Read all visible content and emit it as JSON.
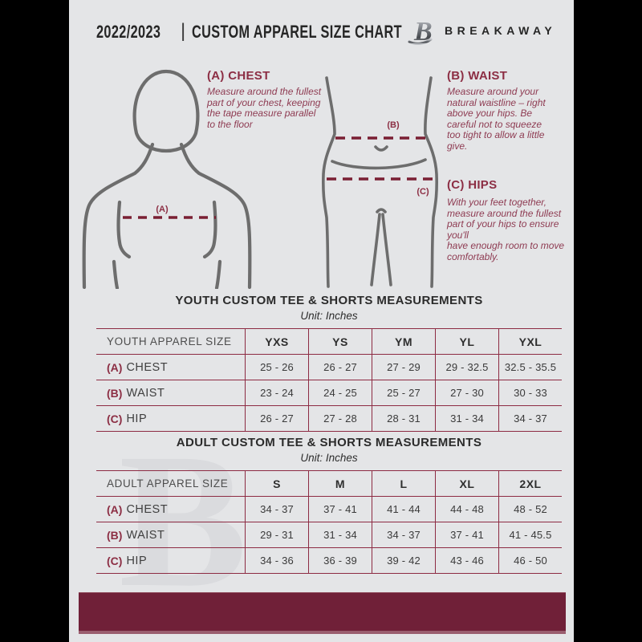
{
  "header": {
    "season": "2022/2023",
    "divider": "|",
    "title": "CUSTOM APPAREL SIZE CHART",
    "brand": "BREAKAWAY",
    "logo_letter": "B"
  },
  "figures": {
    "chest_label": "(A)",
    "waist_label": "(B)",
    "hip_label": "(C)"
  },
  "instructions": {
    "chest": {
      "heading": "(A) CHEST",
      "body": "Measure around the fullest part of your chest, keeping the tape measure parallel to the floor"
    },
    "waist": {
      "heading": "(B) WAIST",
      "body": "Measure around your natural waistline – right above your hips. Be careful not to squeeze too tight to allow a little give."
    },
    "hips": {
      "heading": "(C) HIPS",
      "body": "With your feet together, measure around the fullest part of your hips to ensure you'll\nhave enough room to move comfortably."
    }
  },
  "youth_table": {
    "title": "YOUTH CUSTOM TEE & SHORTS MEASUREMENTS",
    "unit": "Unit: Inches",
    "size_label": "YOUTH APPAREL SIZE",
    "columns": [
      "YXS",
      "YS",
      "YM",
      "YL",
      "YXL"
    ],
    "rows": [
      {
        "prefix": "(A)",
        "label": "CHEST",
        "values": [
          "25 - 26",
          "26 - 27",
          "27 - 29",
          "29 - 32.5",
          "32.5 - 35.5"
        ]
      },
      {
        "prefix": "(B)",
        "label": "WAIST",
        "values": [
          "23 - 24",
          "24 - 25",
          "25 - 27",
          "27 - 30",
          "30 - 33"
        ]
      },
      {
        "prefix": "(C)",
        "label": "HIP",
        "values": [
          "26 - 27",
          "27 - 28",
          "28 - 31",
          "31 - 34",
          "34 - 37"
        ]
      }
    ]
  },
  "adult_table": {
    "title": "ADULT CUSTOM TEE & SHORTS MEASUREMENTS",
    "unit": "Unit: Inches",
    "size_label": "ADULT APPAREL SIZE",
    "columns": [
      "S",
      "M",
      "L",
      "XL",
      "2XL"
    ],
    "rows": [
      {
        "prefix": "(A)",
        "label": "CHEST",
        "values": [
          "34 - 37",
          "37 - 41",
          "41 - 44",
          "44 - 48",
          "48 - 52"
        ]
      },
      {
        "prefix": "(B)",
        "label": "WAIST",
        "values": [
          "29 - 31",
          "31 - 34",
          "34 - 37",
          "37 - 41",
          "41 - 45.5"
        ]
      },
      {
        "prefix": "(C)",
        "label": "HIP",
        "values": [
          "34 - 36",
          "36 - 39",
          "39 - 42",
          "43 - 46",
          "46 - 50"
        ]
      }
    ]
  },
  "watermark": {
    "letter": "B"
  },
  "colors": {
    "accent_maroon": "#8c2e44",
    "table_line": "#8d2b43",
    "dash_line": "#7a1f33",
    "body_text_maroon": "#8e3b52",
    "footer_bar": "#702038",
    "flyer_background": "#e4e5e7",
    "canvas_background": "#000000",
    "figure_stroke": "#6d6d6d"
  }
}
